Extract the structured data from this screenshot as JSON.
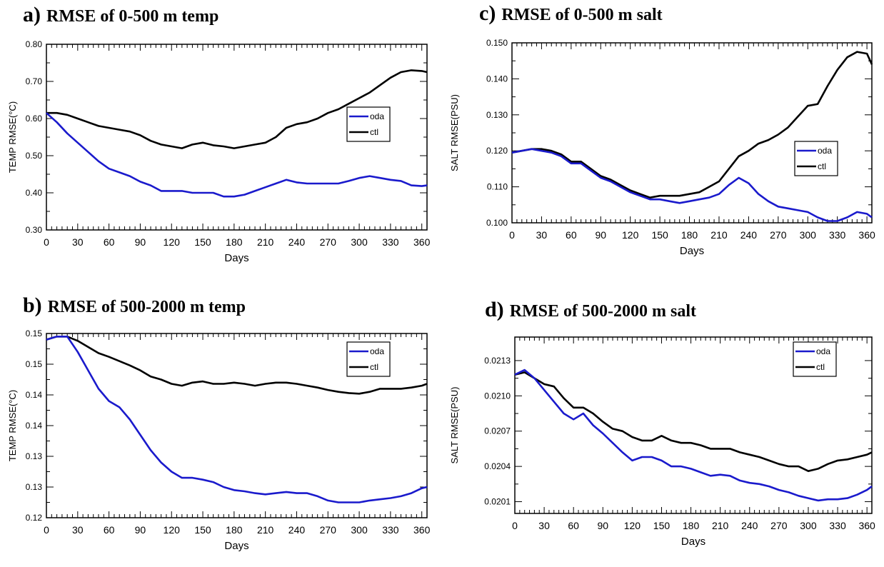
{
  "colors": {
    "oda": "#1a1acc",
    "ctl": "#000000",
    "axis": "#000000"
  },
  "charts": [
    {
      "id": "a",
      "chart_data": {
        "type": "line",
        "label": "a)",
        "title": "RMSE of 0-500 m temp",
        "xlabel": "Days",
        "ylabel": "TEMP RMSE(°C)",
        "xlim": [
          0,
          365
        ],
        "ylim": [
          0.3,
          0.8
        ],
        "xticks": [
          0,
          30,
          60,
          90,
          120,
          150,
          180,
          210,
          240,
          270,
          300,
          330,
          360
        ],
        "yticks": [
          0.3,
          0.4,
          0.5,
          0.6,
          0.7,
          0.8
        ],
        "ytick_labels": [
          "0.30",
          "0.40",
          "0.50",
          "0.60",
          "0.70",
          "0.80"
        ],
        "legend": "upper-right",
        "series": [
          {
            "name": "oda",
            "x": [
              0,
              10,
              20,
              30,
              40,
              50,
              60,
              70,
              80,
              90,
              100,
              110,
              120,
              130,
              140,
              150,
              160,
              170,
              180,
              190,
              200,
              210,
              220,
              230,
              240,
              250,
              260,
              270,
              280,
              290,
              300,
              310,
              320,
              330,
              340,
              350,
              360,
              365
            ],
            "values": [
              0.615,
              0.59,
              0.56,
              0.535,
              0.51,
              0.485,
              0.465,
              0.455,
              0.445,
              0.43,
              0.42,
              0.405,
              0.405,
              0.405,
              0.4,
              0.4,
              0.4,
              0.39,
              0.39,
              0.395,
              0.405,
              0.415,
              0.425,
              0.435,
              0.428,
              0.425,
              0.425,
              0.425,
              0.425,
              0.432,
              0.44,
              0.445,
              0.44,
              0.435,
              0.432,
              0.42,
              0.418,
              0.42
            ]
          },
          {
            "name": "ctl",
            "x": [
              0,
              10,
              20,
              30,
              40,
              50,
              60,
              70,
              80,
              90,
              100,
              110,
              120,
              130,
              140,
              150,
              160,
              170,
              180,
              190,
              200,
              210,
              220,
              230,
              240,
              250,
              260,
              270,
              280,
              290,
              300,
              310,
              320,
              330,
              340,
              350,
              360,
              365
            ],
            "values": [
              0.615,
              0.615,
              0.61,
              0.6,
              0.59,
              0.58,
              0.575,
              0.57,
              0.565,
              0.555,
              0.54,
              0.53,
              0.525,
              0.52,
              0.53,
              0.535,
              0.528,
              0.525,
              0.52,
              0.525,
              0.53,
              0.535,
              0.55,
              0.575,
              0.585,
              0.59,
              0.6,
              0.615,
              0.625,
              0.64,
              0.655,
              0.67,
              0.69,
              0.71,
              0.725,
              0.73,
              0.728,
              0.725
            ]
          }
        ]
      }
    },
    {
      "id": "b",
      "chart_data": {
        "type": "line",
        "label": "b)",
        "title": "RMSE of 500-2000 m temp",
        "xlabel": "Days",
        "ylabel": "TEMP RMSE(°C)",
        "xlim": [
          0,
          365
        ],
        "ylim": [
          0.12,
          0.15
        ],
        "xticks": [
          0,
          30,
          60,
          90,
          120,
          150,
          180,
          210,
          240,
          270,
          300,
          330,
          360
        ],
        "yticks": [
          0.12,
          0.125,
          0.13,
          0.135,
          0.14,
          0.145,
          0.15
        ],
        "ytick_labels": [
          "0.12",
          "0.13",
          "0.13",
          "0.14",
          "0.14",
          "0.15",
          "0.15"
        ],
        "legend": "upper-right",
        "series": [
          {
            "name": "oda",
            "x": [
              0,
              10,
              20,
              30,
              40,
              50,
              60,
              70,
              80,
              90,
              100,
              110,
              120,
              130,
              140,
              150,
              160,
              170,
              180,
              190,
              200,
              210,
              220,
              230,
              240,
              250,
              260,
              270,
              280,
              290,
              300,
              310,
              320,
              330,
              340,
              350,
              360,
              365
            ],
            "values": [
              0.149,
              0.1495,
              0.1495,
              0.147,
              0.144,
              0.141,
              0.139,
              0.138,
              0.136,
              0.1335,
              0.131,
              0.129,
              0.1275,
              0.1265,
              0.1265,
              0.1262,
              0.1258,
              0.125,
              0.1245,
              0.1243,
              0.124,
              0.1238,
              0.124,
              0.1242,
              0.124,
              0.124,
              0.1235,
              0.1228,
              0.1225,
              0.1225,
              0.1225,
              0.1228,
              0.123,
              0.1232,
              0.1235,
              0.124,
              0.1248,
              0.125
            ]
          },
          {
            "name": "ctl",
            "x": [
              0,
              10,
              20,
              30,
              40,
              50,
              60,
              70,
              80,
              90,
              100,
              110,
              120,
              130,
              140,
              150,
              160,
              170,
              180,
              190,
              200,
              210,
              220,
              230,
              240,
              250,
              260,
              270,
              280,
              290,
              300,
              310,
              320,
              330,
              340,
              350,
              360,
              365
            ],
            "values": [
              0.149,
              0.1495,
              0.1495,
              0.1488,
              0.1478,
              0.1468,
              0.1462,
              0.1455,
              0.1448,
              0.144,
              0.143,
              0.1425,
              0.1418,
              0.1415,
              0.142,
              0.1422,
              0.1418,
              0.1418,
              0.142,
              0.1418,
              0.1415,
              0.1418,
              0.142,
              0.142,
              0.1418,
              0.1415,
              0.1412,
              0.1408,
              0.1405,
              0.1403,
              0.1402,
              0.1405,
              0.141,
              0.141,
              0.141,
              0.1412,
              0.1415,
              0.1418
            ]
          }
        ]
      }
    },
    {
      "id": "c",
      "chart_data": {
        "type": "line",
        "label": "c)",
        "title": "RMSE of 0-500 m salt",
        "xlabel": "Days",
        "ylabel": "SALT RMSE(PSU)",
        "xlim": [
          0,
          365
        ],
        "ylim": [
          0.1,
          0.15
        ],
        "xticks": [
          0,
          30,
          60,
          90,
          120,
          150,
          180,
          210,
          240,
          270,
          300,
          330,
          360
        ],
        "yticks": [
          0.1,
          0.11,
          0.12,
          0.13,
          0.14,
          0.15
        ],
        "ytick_labels": [
          "0.100",
          "0.110",
          "0.120",
          "0.130",
          "0.140",
          "0.150"
        ],
        "legend": "center-right",
        "series": [
          {
            "name": "oda",
            "x": [
              0,
              10,
              20,
              30,
              40,
              50,
              60,
              70,
              80,
              90,
              100,
              110,
              120,
              130,
              140,
              150,
              160,
              170,
              180,
              190,
              200,
              210,
              220,
              230,
              240,
              250,
              260,
              270,
              280,
              290,
              300,
              310,
              320,
              330,
              340,
              350,
              360,
              365
            ],
            "values": [
              0.1195,
              0.12,
              0.1205,
              0.12,
              0.1195,
              0.1185,
              0.1165,
              0.1165,
              0.1145,
              0.1125,
              0.1115,
              0.11,
              0.1085,
              0.1075,
              0.1065,
              0.1065,
              0.106,
              0.1055,
              0.106,
              0.1065,
              0.107,
              0.108,
              0.1105,
              0.1125,
              0.111,
              0.108,
              0.106,
              0.1045,
              0.104,
              0.1035,
              0.103,
              0.1015,
              0.1005,
              0.1005,
              0.1015,
              0.103,
              0.1025,
              0.1015
            ]
          },
          {
            "name": "ctl",
            "x": [
              0,
              10,
              20,
              30,
              40,
              50,
              60,
              70,
              80,
              90,
              100,
              110,
              120,
              130,
              140,
              150,
              160,
              170,
              180,
              190,
              200,
              210,
              220,
              230,
              240,
              250,
              260,
              270,
              280,
              290,
              300,
              310,
              320,
              330,
              340,
              350,
              360,
              365
            ],
            "values": [
              0.1195,
              0.12,
              0.1205,
              0.1205,
              0.12,
              0.119,
              0.117,
              0.117,
              0.115,
              0.113,
              0.112,
              0.1105,
              0.109,
              0.108,
              0.107,
              0.1075,
              0.1075,
              0.1075,
              0.108,
              0.1085,
              0.11,
              0.1115,
              0.115,
              0.1185,
              0.12,
              0.122,
              0.123,
              0.1245,
              0.1265,
              0.1295,
              0.1325,
              0.133,
              0.138,
              0.1425,
              0.146,
              0.1475,
              0.147,
              0.144
            ]
          }
        ]
      }
    },
    {
      "id": "d",
      "chart_data": {
        "type": "line",
        "label": "d)",
        "title": "RMSE of 500-2000 m salt",
        "xlabel": "Days",
        "ylabel": "SALT RMSE(PSU)",
        "xlim": [
          0,
          365
        ],
        "ylim": [
          0.02,
          0.0215
        ],
        "xticks": [
          0,
          30,
          60,
          90,
          120,
          150,
          180,
          210,
          240,
          270,
          300,
          330,
          360
        ],
        "yticks": [
          0.0201,
          0.0204,
          0.0207,
          0.021,
          0.0213
        ],
        "ytick_labels": [
          "0.0201",
          "0.0204",
          "0.0207",
          "0.0210",
          "0.0213"
        ],
        "legend": "upper-right",
        "series": [
          {
            "name": "oda",
            "x": [
              0,
              10,
              20,
              30,
              40,
              50,
              60,
              70,
              80,
              90,
              100,
              110,
              120,
              130,
              140,
              150,
              160,
              170,
              180,
              190,
              200,
              210,
              220,
              230,
              240,
              250,
              260,
              270,
              280,
              290,
              300,
              310,
              320,
              330,
              340,
              350,
              360,
              365
            ],
            "values": [
              0.02118,
              0.02122,
              0.02115,
              0.02105,
              0.02095,
              0.02085,
              0.0208,
              0.02085,
              0.02075,
              0.02068,
              0.0206,
              0.02052,
              0.02045,
              0.02048,
              0.02048,
              0.02045,
              0.0204,
              0.0204,
              0.02038,
              0.02035,
              0.02032,
              0.02033,
              0.02032,
              0.02028,
              0.02026,
              0.02025,
              0.02023,
              0.0202,
              0.02018,
              0.02015,
              0.02013,
              0.02011,
              0.02012,
              0.02012,
              0.02013,
              0.02016,
              0.0202,
              0.02023
            ]
          },
          {
            "name": "ctl",
            "x": [
              0,
              10,
              20,
              30,
              40,
              50,
              60,
              70,
              80,
              90,
              100,
              110,
              120,
              130,
              140,
              150,
              160,
              170,
              180,
              190,
              200,
              210,
              220,
              230,
              240,
              250,
              260,
              270,
              280,
              290,
              300,
              310,
              320,
              330,
              340,
              350,
              360,
              365
            ],
            "values": [
              0.02118,
              0.0212,
              0.02115,
              0.0211,
              0.02108,
              0.02098,
              0.0209,
              0.0209,
              0.02085,
              0.02078,
              0.02072,
              0.0207,
              0.02065,
              0.02062,
              0.02062,
              0.02066,
              0.02062,
              0.0206,
              0.0206,
              0.02058,
              0.02055,
              0.02055,
              0.02055,
              0.02052,
              0.0205,
              0.02048,
              0.02045,
              0.02042,
              0.0204,
              0.0204,
              0.02036,
              0.02038,
              0.02042,
              0.02045,
              0.02046,
              0.02048,
              0.0205,
              0.02052
            ]
          }
        ]
      }
    }
  ]
}
